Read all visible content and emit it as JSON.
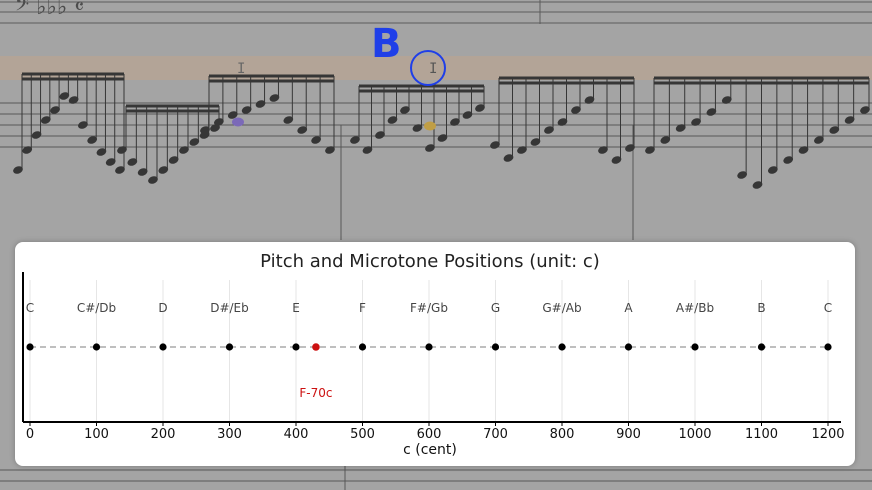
{
  "overlay": {
    "label": "B",
    "text_cursor_glyph": "I",
    "accent_color": "#1f3fe8"
  },
  "score": {
    "highlight_color": "#c9a98f",
    "note_color": "#000000",
    "marker_colors": [
      "#6b4fc8",
      "#d4a017"
    ]
  },
  "chart_data": {
    "type": "scatter",
    "title": "Pitch and Microtone Positions (unit: c)",
    "xlabel": "c (cent)",
    "ylabel": "",
    "xlim": [
      0,
      1200
    ],
    "xticks": [
      0,
      100,
      200,
      300,
      400,
      500,
      600,
      700,
      800,
      900,
      1000,
      1100,
      1200
    ],
    "grid": "vertical",
    "points": [
      {
        "x": 0,
        "label": "C"
      },
      {
        "x": 100,
        "label": "C#/Db"
      },
      {
        "x": 200,
        "label": "D"
      },
      {
        "x": 300,
        "label": "D#/Eb"
      },
      {
        "x": 400,
        "label": "E"
      },
      {
        "x": 500,
        "label": "F"
      },
      {
        "x": 600,
        "label": "F#/Gb"
      },
      {
        "x": 700,
        "label": "G"
      },
      {
        "x": 800,
        "label": "G#/Ab"
      },
      {
        "x": 900,
        "label": "A"
      },
      {
        "x": 1000,
        "label": "A#/Bb"
      },
      {
        "x": 1100,
        "label": "B"
      },
      {
        "x": 1200,
        "label": "C"
      }
    ],
    "microtone": {
      "x": 430,
      "label": "F-70c",
      "color": "#cc1111"
    },
    "point_color": "#000000",
    "line_color": "#aaaaaa"
  }
}
